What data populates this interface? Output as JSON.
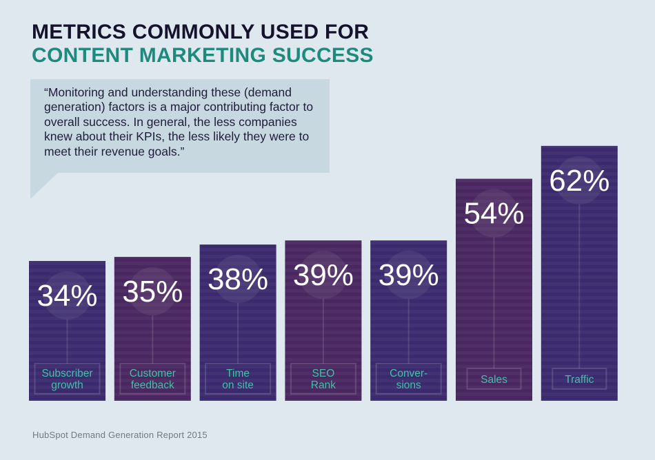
{
  "header": {
    "title_line1": "METRICS COMMONLY USED FOR",
    "title_line2": "CONTENT MARKETING SUCCESS"
  },
  "quote": {
    "text": "“Monitoring and understanding these (demand generation) factors is a major contributing factor to overall success. In general, the less companies knew about their KPIs, the less likely they were to meet their revenue goals.”"
  },
  "footer": {
    "source": "HubSpot Demand Generation Report 2015"
  },
  "colors": {
    "background": "#dfe8ee",
    "bar_blue": "#3b2a6e",
    "bar_purple": "#4a2760",
    "label_teal": "#3cc3a6",
    "title_dark": "#15132b",
    "title_teal": "#1d8a7c",
    "quote_bg": "#c8d8e1"
  },
  "chart_data": {
    "type": "bar",
    "title": "",
    "xlabel": "",
    "ylabel": "",
    "ylim": [
      0,
      62
    ],
    "categories": [
      [
        "Subscriber",
        "growth"
      ],
      [
        "Customer",
        "feedback"
      ],
      [
        "Time",
        "on site"
      ],
      [
        "SEO",
        "Rank"
      ],
      [
        "Conver-",
        "sions"
      ],
      [
        "Sales"
      ],
      [
        "Traffic"
      ]
    ],
    "values": [
      34,
      35,
      38,
      39,
      39,
      54,
      62
    ],
    "value_labels": [
      "34%",
      "35%",
      "38%",
      "39%",
      "39%",
      "54%",
      "62%"
    ],
    "bar_colors": [
      "#3b2a6e",
      "#4a2760",
      "#3b2a6e",
      "#4a2760",
      "#3b2a6e",
      "#4a2760",
      "#3b2a6e"
    ]
  }
}
